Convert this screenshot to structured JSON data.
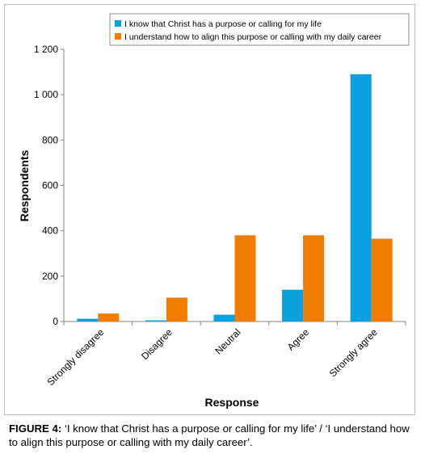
{
  "chart_data": {
    "type": "bar",
    "xlabel": "Response",
    "ylabel": "Respondents",
    "ylim": [
      0,
      1200
    ],
    "yticks": [
      0,
      200,
      400,
      600,
      800,
      1000,
      1200
    ],
    "ytick_labels": [
      "0",
      "200",
      "400",
      "600",
      "800",
      "1 000",
      "1 200"
    ],
    "categories": [
      "Strongly disagree",
      "Disagree",
      "Neutral",
      "Agree",
      "Strongly agree"
    ],
    "series": [
      {
        "name": "I know that Christ has a purpose or calling for my life",
        "color": "#0aa0e0",
        "values": [
          12,
          5,
          30,
          140,
          1090
        ]
      },
      {
        "name": "I understand how to align this purpose or calling with my daily career",
        "color": "#f07c00",
        "values": [
          35,
          105,
          380,
          380,
          365
        ]
      }
    ],
    "legend_position": "top-right",
    "grid": false
  },
  "caption": {
    "label": "FIGURE 4:",
    "text": " ‘I know that Christ has a purpose or calling for my life’ / ‘I understand how to align this purpose or calling with my daily career’."
  }
}
